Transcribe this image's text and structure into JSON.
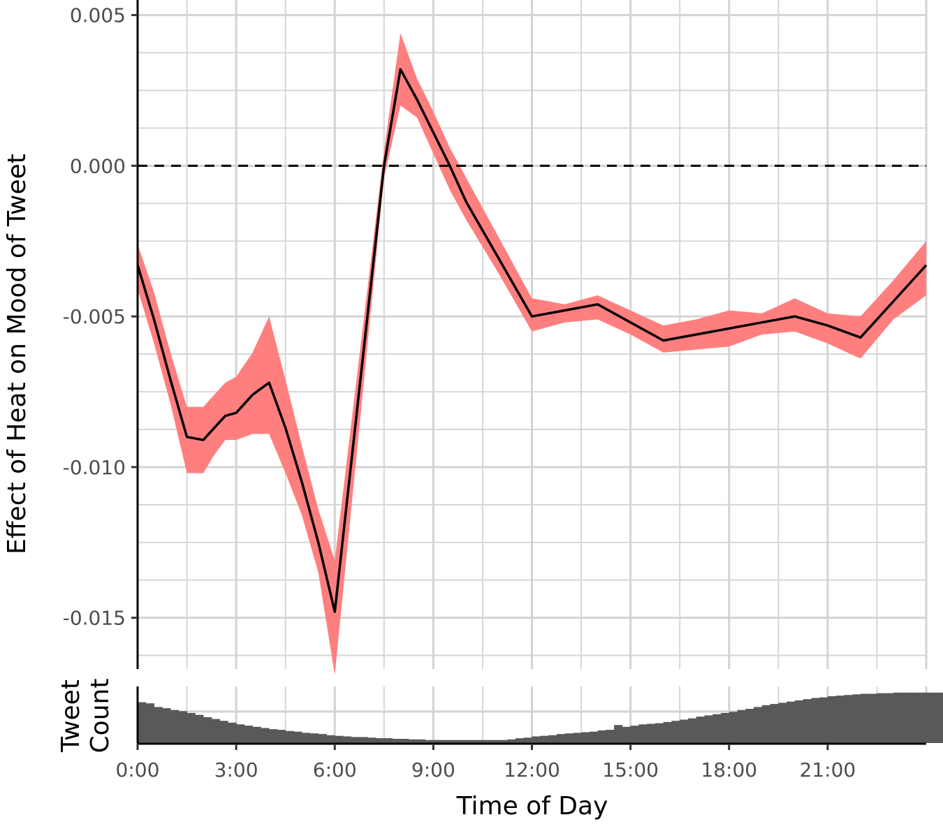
{
  "colors": {
    "ribbon": "#ff7f7f",
    "line": "#000000",
    "grid": "#d3d3d3",
    "bars": "#595959",
    "zero_line": "#000000"
  },
  "chart_data": [
    {
      "type": "line",
      "panel": "effect",
      "xlabel": "",
      "ylabel": "Effect of Heat on Mood of Tweet",
      "xlim": [
        0,
        24
      ],
      "ylim": [
        -0.0167,
        0.0055
      ],
      "y_ticks": [
        0.005,
        0.0,
        -0.005,
        -0.01,
        -0.015
      ],
      "y_tick_labels": [
        "0.005",
        "0.000",
        "-0.005",
        "-0.010",
        "-0.015"
      ],
      "reference_line": {
        "y": 0,
        "style": "dashed"
      },
      "grid": true,
      "series": [
        {
          "x": [
            0,
            0.5,
            1,
            1.5,
            2,
            2.33,
            2.67,
            3,
            3.5,
            4,
            4.5,
            5,
            5.5,
            6,
            7.5,
            8,
            8.5,
            9,
            9.5,
            10,
            11,
            12,
            13,
            14,
            15,
            16,
            17,
            18,
            19,
            20,
            21,
            22,
            23,
            24
          ],
          "y": [
            -0.0033,
            -0.0051,
            -0.0071,
            -0.009,
            -0.0091,
            -0.0087,
            -0.0083,
            -0.0082,
            -0.0076,
            -0.0072,
            -0.0087,
            -0.0105,
            -0.0125,
            -0.0148,
            0.0,
            0.0032,
            0.0022,
            0.0011,
            0.0,
            -0.0012,
            -0.0031,
            -0.005,
            -0.0048,
            -0.0046,
            -0.0052,
            -0.0058,
            -0.0056,
            -0.0054,
            -0.0052,
            -0.005,
            -0.0053,
            -0.0057,
            -0.0045,
            -0.0033
          ],
          "lower": [
            -0.0041,
            -0.0059,
            -0.0079,
            -0.0102,
            -0.0102,
            -0.0096,
            -0.0091,
            -0.0091,
            -0.0089,
            -0.0089,
            -0.0102,
            -0.0116,
            -0.0135,
            -0.0169,
            -0.0004,
            0.002,
            0.0016,
            0.0004,
            -0.0008,
            -0.0018,
            -0.0036,
            -0.0055,
            -0.0052,
            -0.0051,
            -0.0056,
            -0.0062,
            -0.0061,
            -0.006,
            -0.0056,
            -0.0055,
            -0.0059,
            -0.0064,
            -0.0051,
            -0.0043
          ],
          "upper": [
            -0.0026,
            -0.0042,
            -0.0062,
            -0.008,
            -0.008,
            -0.0076,
            -0.0072,
            -0.007,
            -0.0062,
            -0.005,
            -0.0071,
            -0.0093,
            -0.0114,
            -0.0131,
            0.0005,
            0.0044,
            0.0029,
            0.0018,
            0.0006,
            -0.0004,
            -0.0024,
            -0.0044,
            -0.0046,
            -0.0043,
            -0.0048,
            -0.0053,
            -0.0051,
            -0.0048,
            -0.0049,
            -0.0044,
            -0.0049,
            -0.005,
            -0.0038,
            -0.0025
          ]
        }
      ]
    },
    {
      "type": "bar",
      "panel": "histogram",
      "ylabel": "Tweet\nCount",
      "xlabel": "Time of Day",
      "xlim": [
        0,
        24
      ],
      "x_ticks": [
        0,
        3,
        6,
        9,
        12,
        15,
        18,
        21
      ],
      "x_tick_labels": [
        "0:00",
        "3:00",
        "6:00",
        "9:00",
        "12:00",
        "15:00",
        "18:00",
        "21:00"
      ],
      "grid": true,
      "bin_hours": 0.25,
      "values": [
        0.68,
        0.66,
        0.6,
        0.58,
        0.55,
        0.53,
        0.5,
        0.47,
        0.43,
        0.4,
        0.37,
        0.34,
        0.31,
        0.29,
        0.27,
        0.25,
        0.23,
        0.22,
        0.2,
        0.19,
        0.17,
        0.16,
        0.15,
        0.13,
        0.12,
        0.11,
        0.1,
        0.1,
        0.09,
        0.08,
        0.08,
        0.07,
        0.07,
        0.06,
        0.06,
        0.05,
        0.05,
        0.05,
        0.05,
        0.05,
        0.05,
        0.05,
        0.05,
        0.05,
        0.05,
        0.06,
        0.08,
        0.09,
        0.11,
        0.12,
        0.13,
        0.15,
        0.16,
        0.17,
        0.18,
        0.19,
        0.21,
        0.22,
        0.3,
        0.27,
        0.29,
        0.31,
        0.32,
        0.33,
        0.35,
        0.37,
        0.39,
        0.41,
        0.44,
        0.46,
        0.48,
        0.5,
        0.52,
        0.55,
        0.57,
        0.6,
        0.63,
        0.65,
        0.67,
        0.69,
        0.71,
        0.73,
        0.75,
        0.76,
        0.78,
        0.79,
        0.8,
        0.81,
        0.82,
        0.82,
        0.83,
        0.83,
        0.84,
        0.84,
        0.84,
        0.84,
        0.84,
        0.84,
        0.84,
        0.84,
        0.83,
        0.83,
        0.83,
        0.83,
        0.83,
        0.84,
        0.84,
        0.84,
        0.84,
        0.84,
        0.84,
        0.84,
        0.83,
        0.83,
        0.83,
        0.83,
        0.83,
        0.83,
        0.83,
        0.83,
        0.84,
        0.84,
        0.84,
        0.84,
        0.85,
        0.85,
        0.85,
        0.86,
        0.86,
        0.87,
        0.87,
        0.88,
        0.88,
        0.88,
        0.89,
        0.89,
        0.9,
        0.91,
        0.91,
        0.92,
        0.93,
        0.94,
        0.95,
        0.96,
        0.96,
        0.95,
        0.93,
        0.9,
        0.85,
        0.8,
        0.78,
        0.76
      ]
    }
  ]
}
